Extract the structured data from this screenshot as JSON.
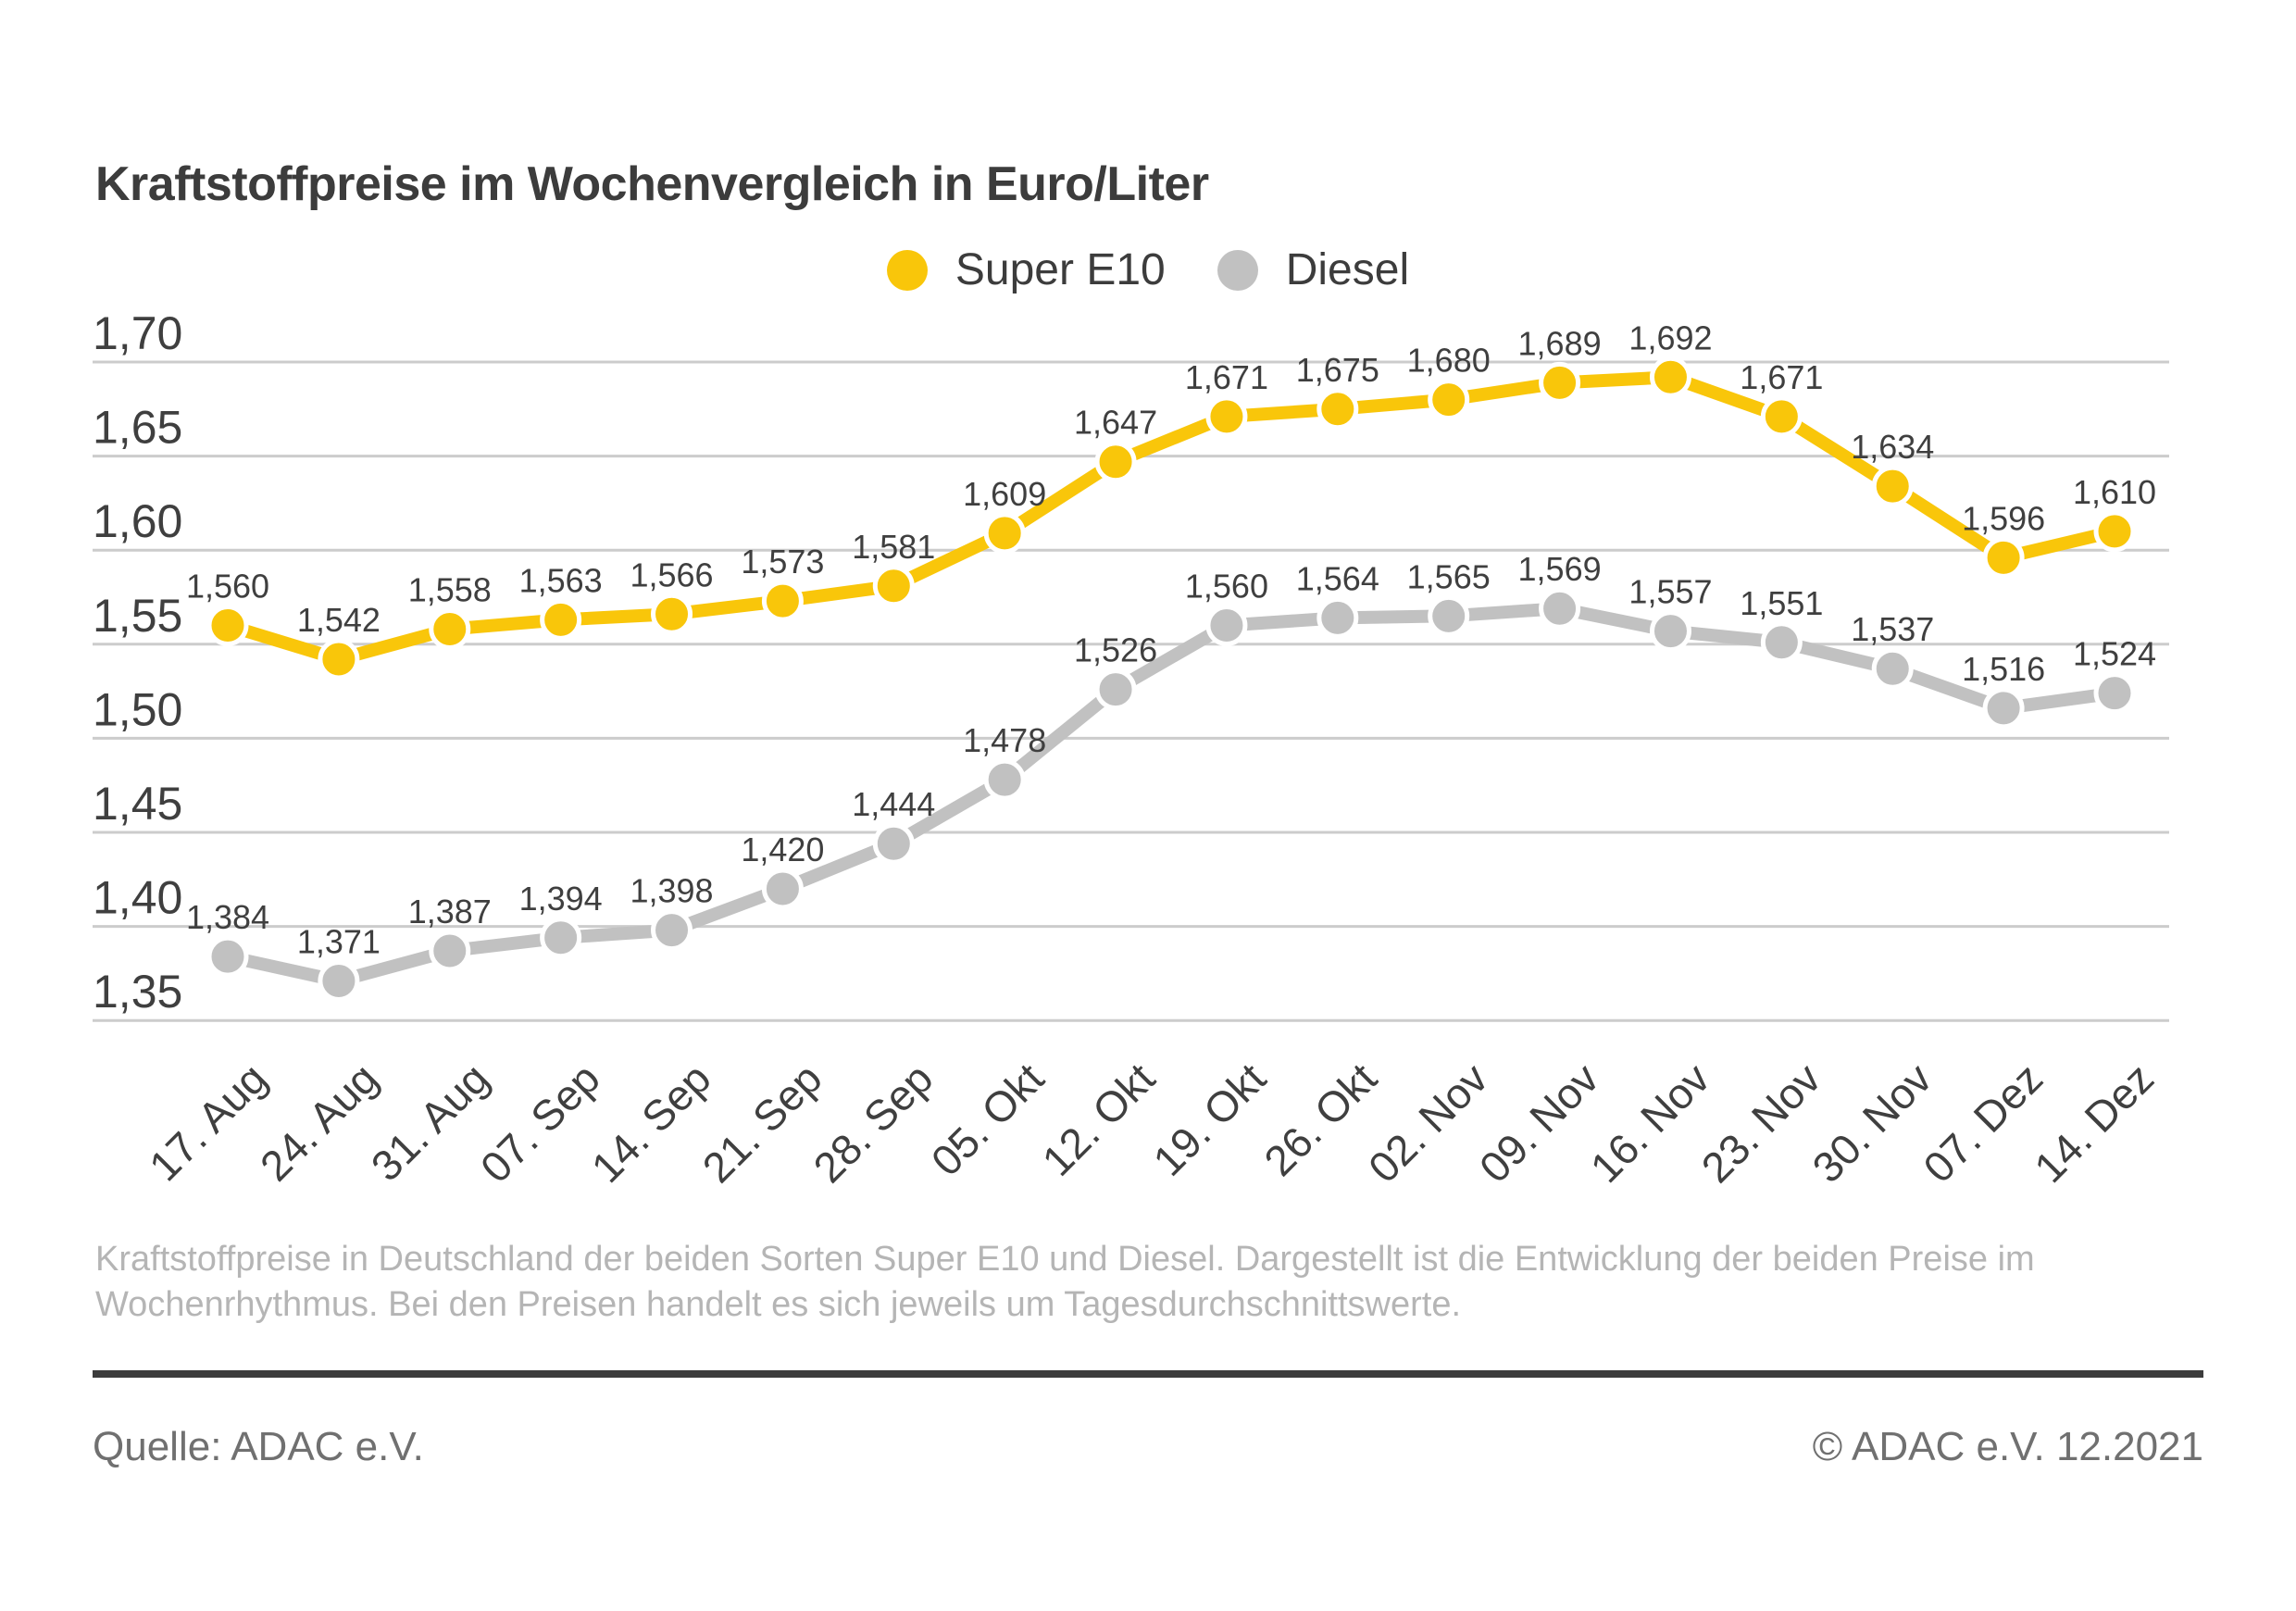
{
  "title": "Kraftstoffpreise im Wochenvergleich in Euro/Liter",
  "legend": {
    "items": [
      {
        "label": "Super E10",
        "color": "#f9c60a"
      },
      {
        "label": "Diesel",
        "color": "#c1c1c1"
      }
    ]
  },
  "chart_data": {
    "type": "line",
    "title": "Kraftstoffpreise im Wochenvergleich in Euro/Liter",
    "categories": [
      "17. Aug",
      "24. Aug",
      "31. Aug",
      "07. Sep",
      "14. Sep",
      "21. Sep",
      "28. Sep",
      "05. Okt",
      "12. Okt",
      "19. Okt",
      "26. Okt",
      "02. Nov",
      "09. Nov",
      "16. Nov",
      "23. Nov",
      "30. Nov",
      "07. Dez",
      "14. Dez"
    ],
    "series": [
      {
        "name": "Super E10",
        "color": "#f9c60a",
        "values": [
          1.56,
          1.542,
          1.558,
          1.563,
          1.566,
          1.573,
          1.581,
          1.609,
          1.647,
          1.671,
          1.675,
          1.68,
          1.689,
          1.692,
          1.671,
          1.634,
          1.596,
          1.61
        ]
      },
      {
        "name": "Diesel",
        "color": "#c1c1c1",
        "values": [
          1.384,
          1.371,
          1.387,
          1.394,
          1.398,
          1.42,
          1.444,
          1.478,
          1.526,
          1.56,
          1.564,
          1.565,
          1.569,
          1.557,
          1.551,
          1.537,
          1.516,
          1.524
        ]
      }
    ],
    "ylabel": "Euro/Liter",
    "ylim": [
      1.35,
      1.7
    ],
    "yticks": [
      1.7,
      1.65,
      1.6,
      1.55,
      1.5,
      1.45,
      1.4,
      1.35
    ],
    "ytick_labels": [
      "1,70",
      "1,65",
      "1,60",
      "1,55",
      "1,50",
      "1,45",
      "1,40",
      "1,35"
    ],
    "grid": true,
    "legend_position": "top-center",
    "value_labels": true,
    "decimal_separator": ","
  },
  "caption": {
    "lines": [
      "Kraftstoffpreise in Deutschland der beiden Sorten Super E10 und Diesel. Dargestellt ist die Entwicklung der beiden Preise im",
      "Wochenrhythmus. Bei den Preisen handelt es sich jeweils um Tagesdurchschnittswerte."
    ]
  },
  "footer": {
    "source": "Quelle: ADAC e.V.",
    "copyright": "© ADAC e.V. 12.2021"
  },
  "colors": {
    "accent_yellow": "#f9c60a",
    "series_gray": "#c1c1c1",
    "grid_line": "#cccccc",
    "text_dark": "#3c3c3c",
    "text_axis": "#3f3f3f",
    "caption_gray": "#b5b5b5",
    "footer_gray": "#707070",
    "divider": "#3c3c3c",
    "background": "#ffffff"
  }
}
